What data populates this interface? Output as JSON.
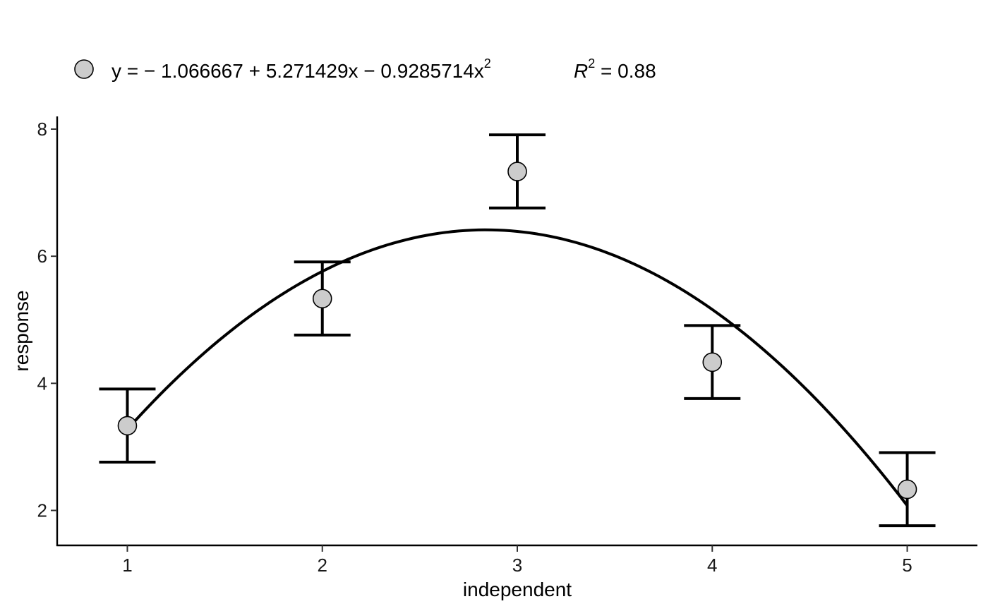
{
  "chart_data": {
    "type": "scatter",
    "title": "",
    "xlabel": "independent",
    "ylabel": "response",
    "xlim": [
      0.64,
      5.36
    ],
    "ylim": [
      1.45,
      8.2
    ],
    "x_ticks": [
      1,
      2,
      3,
      4,
      5
    ],
    "x_tick_labels": [
      "1",
      "2",
      "3",
      "4",
      "5"
    ],
    "y_ticks": [
      2,
      4,
      6,
      8
    ],
    "y_tick_labels": [
      "2",
      "4",
      "6",
      "8"
    ],
    "grid": false,
    "legend_position": "top",
    "series": [
      {
        "x": [
          1,
          2,
          3,
          4,
          5
        ],
        "y": [
          3.333,
          5.333,
          7.333,
          4.333,
          2.333
        ],
        "error_low": [
          2.76,
          4.76,
          6.76,
          3.76,
          1.76
        ],
        "error_high": [
          3.91,
          5.91,
          7.91,
          4.91,
          2.91
        ],
        "marker_color": "#cccccc"
      }
    ],
    "fit": {
      "type": "polynomial",
      "coefficients": [
        -1.066667,
        5.271429,
        -0.9285714
      ],
      "x_range": [
        1,
        5
      ],
      "color": "#000000"
    },
    "legend": {
      "equation_prefix": "y = − 1.066667 + 5.271429x − 0.9285714x",
      "equation_exponent": "2",
      "r2_symbol": "R",
      "r2_exponent": "2",
      "r2_value": " = 0.88"
    }
  }
}
